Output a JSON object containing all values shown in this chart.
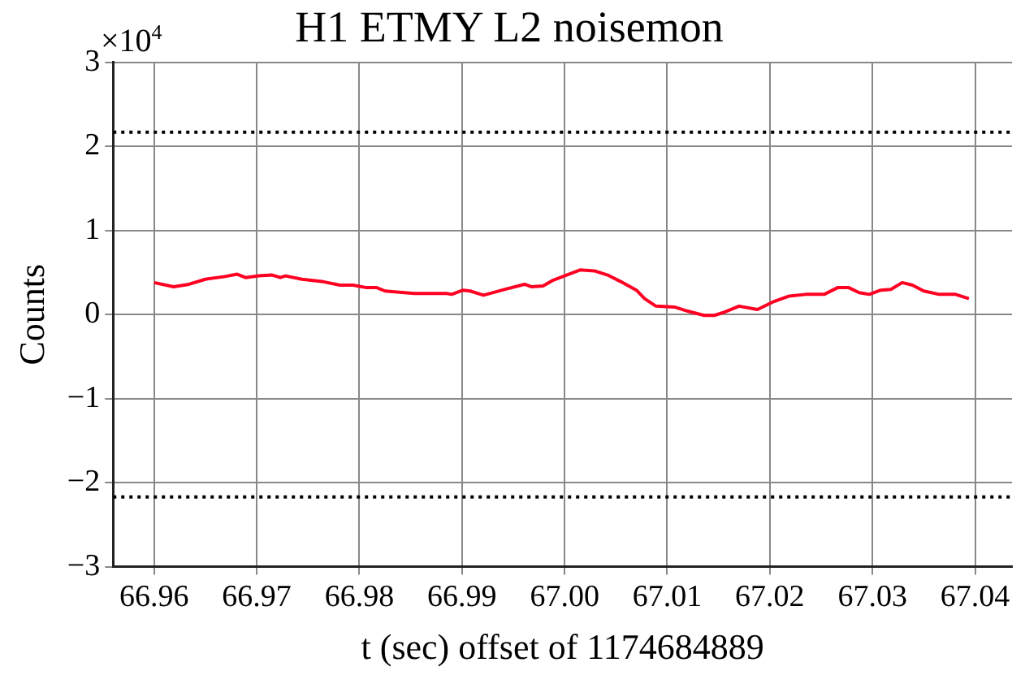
{
  "chart_data": {
    "type": "line",
    "title": "H1 ETMY L2 noisemon",
    "xlabel": "t (sec) offset of 1174684889",
    "ylabel": "Counts",
    "annotations": [
      "×10$^{4}$"
    ],
    "x": [
      66.96,
      66.9619,
      66.9634,
      66.965,
      66.9668,
      66.9681,
      66.9689,
      66.9702,
      66.9715,
      66.9723,
      66.9728,
      66.9744,
      66.9765,
      66.9781,
      66.9794,
      66.9807,
      66.9817,
      66.9825,
      66.9854,
      66.9885,
      66.989,
      66.9901,
      66.9908,
      66.9921,
      66.9942,
      66.9961,
      66.9968,
      66.9979,
      66.9989,
      67.0002,
      67.0015,
      67.0029,
      67.0042,
      67.0055,
      67.007,
      67.0078,
      67.0089,
      67.0107,
      67.012,
      67.0136,
      67.0146,
      67.0156,
      67.017,
      67.0188,
      67.0203,
      67.0219,
      67.0235,
      67.0253,
      67.0266,
      67.0277,
      67.0287,
      67.0297,
      67.0308,
      67.0318,
      67.0329,
      67.0339,
      67.035,
      67.0365,
      67.0381,
      67.0394
    ],
    "series": [
      {
        "color": "#ff0022",
        "values": [
          0.38,
          0.33,
          0.36,
          0.42,
          0.45,
          0.48,
          0.44,
          0.46,
          0.47,
          0.44,
          0.46,
          0.42,
          0.39,
          0.35,
          0.35,
          0.32,
          0.32,
          0.28,
          0.25,
          0.25,
          0.24,
          0.29,
          0.28,
          0.23,
          0.3,
          0.36,
          0.33,
          0.34,
          0.41,
          0.47,
          0.53,
          0.52,
          0.47,
          0.39,
          0.29,
          0.19,
          0.1,
          0.09,
          0.04,
          -0.01,
          -0.01,
          0.03,
          0.1,
          0.06,
          0.15,
          0.22,
          0.24,
          0.24,
          0.32,
          0.32,
          0.26,
          0.24,
          0.29,
          0.3,
          0.38,
          0.35,
          0.28,
          0.24,
          0.24,
          0.19
        ]
      }
    ],
    "xlim": [
      66.956,
      67.0436
    ],
    "ylim": [
      -3,
      3
    ],
    "xticks": [
      {
        "value": 66.96,
        "label": "66.96"
      },
      {
        "value": 66.97,
        "label": "66.97"
      },
      {
        "value": 66.98,
        "label": "66.98"
      },
      {
        "value": 66.99,
        "label": "66.99"
      },
      {
        "value": 67.0,
        "label": "67.00"
      },
      {
        "value": 67.01,
        "label": "67.01"
      },
      {
        "value": 67.02,
        "label": "67.02"
      },
      {
        "value": 67.03,
        "label": "67.03"
      },
      {
        "value": 67.04,
        "label": "67.04"
      }
    ],
    "yticks": [
      {
        "value": -3,
        "label": "−3"
      },
      {
        "value": -2,
        "label": "−2"
      },
      {
        "value": -1,
        "label": "−1"
      },
      0,
      1,
      2,
      3
    ],
    "ref_lines": [
      {
        "axis": "y",
        "value": 2.17,
        "color": "#000000",
        "line_style": "dotted"
      },
      {
        "axis": "y",
        "value": -2.17,
        "color": "#000000",
        "line_style": "dotted"
      }
    ],
    "grid": true,
    "legend": false,
    "marker": "none",
    "line_style": "solid"
  }
}
